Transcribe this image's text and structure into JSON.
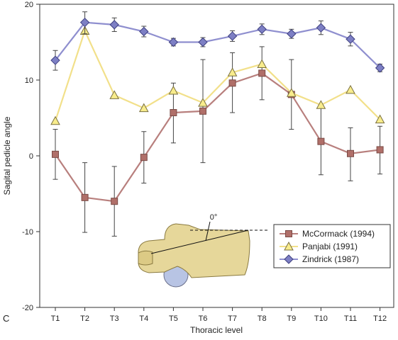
{
  "chart_data": {
    "type": "line",
    "panel_label": "C",
    "xlabel": "Thoracic level",
    "ylabel": "Sagital pedicle angle",
    "categories": [
      "T1",
      "T2",
      "T3",
      "T4",
      "T5",
      "T6",
      "T7",
      "T8",
      "T9",
      "T10",
      "T11",
      "T12"
    ],
    "ylim": [
      -20,
      20
    ],
    "yticks": [
      20,
      10,
      0,
      -10,
      -20
    ],
    "grid": false,
    "legend_position": "lower-right",
    "series": [
      {
        "name": "McCormack (1994)",
        "marker": "square",
        "line_color": "#b87f7d",
        "marker_fill": "#b06f69",
        "marker_stroke": "#7a4a45",
        "values": [
          0.2,
          -5.5,
          -6.0,
          -0.2,
          5.7,
          5.9,
          9.6,
          10.9,
          8.1,
          1.9,
          0.3,
          0.8
        ],
        "err_low": [
          -3.1,
          -10.1,
          -10.6,
          -3.6,
          1.7,
          -0.9,
          5.7,
          7.4,
          3.5,
          -2.5,
          -3.3,
          -2.4
        ],
        "err_high": [
          3.5,
          -0.9,
          -1.4,
          3.2,
          9.6,
          12.7,
          13.6,
          14.4,
          12.7,
          6.3,
          3.7,
          3.9
        ]
      },
      {
        "name": "Panjabi (1991)",
        "marker": "triangle",
        "line_color": "#f2e08a",
        "marker_fill": "#f8ec8c",
        "marker_stroke": "#7a7040",
        "values": [
          4.6,
          16.5,
          8.0,
          6.3,
          8.6,
          7.0,
          11.0,
          12.1,
          8.3,
          6.7,
          8.7,
          4.8
        ]
      },
      {
        "name": "Zindrick (1987)",
        "marker": "diamond",
        "line_color": "#8f8fcf",
        "marker_fill": "#7d7fc4",
        "marker_stroke": "#3f4080",
        "values": [
          12.6,
          17.6,
          17.3,
          16.4,
          15.0,
          15.0,
          15.8,
          16.7,
          16.1,
          16.9,
          15.4,
          11.6
        ],
        "err_low": [
          11.3,
          16.1,
          16.4,
          15.7,
          14.5,
          14.4,
          15.1,
          16.0,
          15.5,
          16.0,
          14.5,
          11.1
        ],
        "err_high": [
          13.9,
          19.0,
          18.2,
          17.1,
          15.5,
          15.6,
          16.5,
          17.4,
          16.7,
          17.8,
          16.3,
          12.1
        ]
      }
    ],
    "inset": {
      "label": "0°",
      "illustration": "vertebra-icon"
    }
  }
}
